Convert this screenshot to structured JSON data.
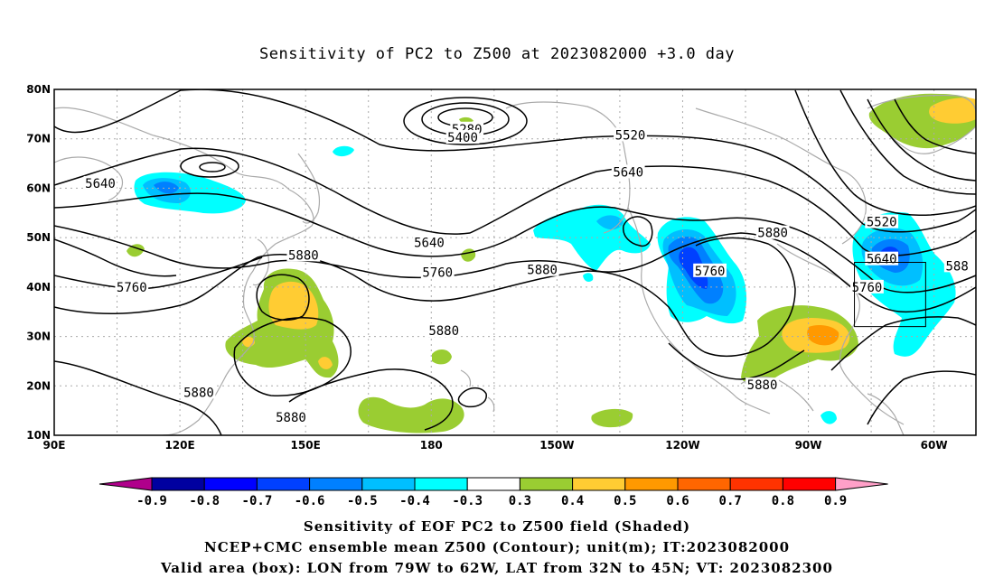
{
  "title": "Sensitivity of PC2 to Z500 at 2023082000 +3.0 day",
  "lat_labels": [
    "80N",
    "70N",
    "60N",
    "50N",
    "40N",
    "30N",
    "20N",
    "10N"
  ],
  "lon_labels": [
    "90E",
    "120E",
    "150E",
    "180",
    "150W",
    "120W",
    "90W",
    "60W"
  ],
  "contour_labels": [
    {
      "text": "5280",
      "lon": 188.5,
      "lat": 72.0
    },
    {
      "text": "5400",
      "lon": 187.5,
      "lat": 70.3
    },
    {
      "text": "5520",
      "lon": 227.5,
      "lat": 70.8
    },
    {
      "text": "5640",
      "lon": 227.0,
      "lat": 63.3
    },
    {
      "text": "5640",
      "lon": 101.0,
      "lat": 61.0
    },
    {
      "text": "5640",
      "lon": 179.5,
      "lat": 49.0
    },
    {
      "text": "5760",
      "lon": 181.5,
      "lat": 43.0
    },
    {
      "text": "5760",
      "lon": 108.5,
      "lat": 40.0
    },
    {
      "text": "5760",
      "lon": 246.5,
      "lat": 43.3
    },
    {
      "text": "5880",
      "lon": 149.5,
      "lat": 46.5
    },
    {
      "text": "5880",
      "lon": 206.5,
      "lat": 43.5
    },
    {
      "text": "5880",
      "lon": 183.0,
      "lat": 31.2
    },
    {
      "text": "5880",
      "lon": 261.5,
      "lat": 51.0
    },
    {
      "text": "5880",
      "lon": 124.5,
      "lat": 18.7
    },
    {
      "text": "5880",
      "lon": 146.5,
      "lat": 13.7
    },
    {
      "text": "5880",
      "lon": 259.0,
      "lat": 20.2
    },
    {
      "text": "5520",
      "lon": 287.5,
      "lat": 53.2
    },
    {
      "text": "5640",
      "lon": 287.5,
      "lat": 45.7
    },
    {
      "text": "5760",
      "lon": 284.0,
      "lat": 40.0
    },
    {
      "text": "588",
      "lon": 305.5,
      "lat": 44.3
    }
  ],
  "colorbar": {
    "colors": [
      "#0000a0",
      "#0000ff",
      "#0040ff",
      "#0080ff",
      "#00bfff",
      "#00ffff",
      "#ffffff",
      "#9acd32",
      "#ffcc33",
      "#ff9900",
      "#ff6600",
      "#ff3300",
      "#ff0000"
    ],
    "low_extend_color": "#b0008b",
    "high_extend_color": "#ffa0c8",
    "labels": [
      "-0.9",
      "-0.8",
      "-0.7",
      "-0.6",
      "-0.5",
      "-0.4",
      "-0.3",
      "0.3",
      "0.4",
      "0.5",
      "0.6",
      "0.7",
      "0.8",
      "0.9"
    ]
  },
  "valid_box": {
    "lon_min": 281,
    "lon_max": 298,
    "lat_min": 32,
    "lat_max": 45
  },
  "captions": [
    "Sensitivity of EOF PC2 to Z500 field (Shaded)",
    "NCEP+CMC ensemble mean Z500 (Contour); unit(m); IT:2023082000",
    "Valid area (box): LON from 79W to 62W, LAT from 32N to 45N; VT: 2023082300"
  ]
}
